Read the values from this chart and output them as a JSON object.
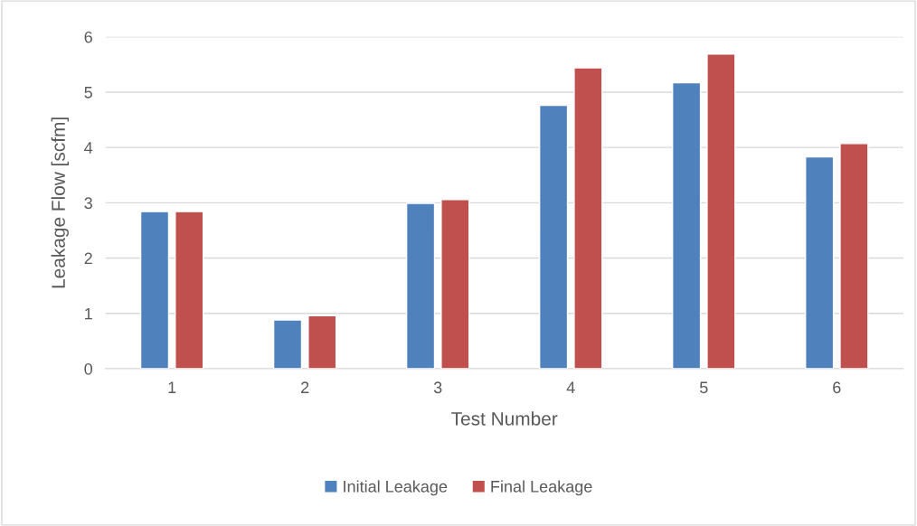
{
  "chart_data": {
    "type": "bar",
    "xlabel": "Test Number",
    "ylabel": "Leakage Flow [scfm]",
    "categories": [
      "1",
      "2",
      "3",
      "4",
      "5",
      "6"
    ],
    "series": [
      {
        "name": "Initial Leakage",
        "color": "#4f81bd",
        "values": [
          2.84,
          0.88,
          2.99,
          4.76,
          5.17,
          3.83
        ]
      },
      {
        "name": "Final Leakage",
        "color": "#c0504d",
        "values": [
          2.84,
          0.96,
          3.06,
          5.44,
          5.69,
          4.07
        ]
      }
    ],
    "ylim": [
      0,
      6
    ],
    "yticks": [
      0,
      1,
      2,
      3,
      4,
      5,
      6
    ],
    "grid": "y",
    "legend": "bottom"
  }
}
